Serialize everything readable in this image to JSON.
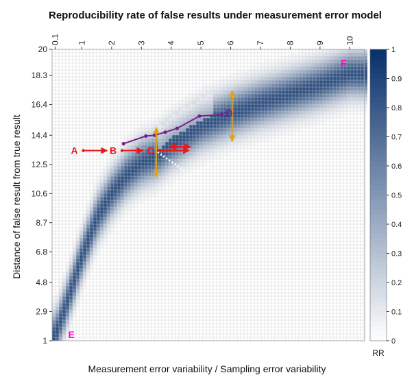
{
  "chart_data": {
    "type": "heatmap",
    "title": "Reproducibility rate of false results under measurement error model",
    "xlabel": "Measurement error variability /  Sampling error variability",
    "ylabel": "Distance of false result from true result",
    "x_ticks": [
      "0.1",
      "1",
      "2",
      "3",
      "4",
      "5",
      "6",
      "7",
      "8",
      "9",
      "10"
    ],
    "x_tick_values": [
      0.1,
      1,
      2,
      3,
      4,
      5,
      6,
      7,
      8,
      9,
      10
    ],
    "y_ticks": [
      "1",
      "2.9",
      "4.8",
      "6.8",
      "8.7",
      "10.6",
      "12.5",
      "14.4",
      "16.4",
      "18.3",
      "20"
    ],
    "y_tick_values": [
      1,
      2.9,
      4.8,
      6.8,
      8.7,
      10.6,
      12.5,
      14.4,
      16.4,
      18.3,
      20
    ],
    "xlim": [
      0,
      10.5
    ],
    "ylim": [
      1,
      20
    ],
    "colorbar": {
      "label": "RR",
      "ticks": [
        "0",
        "0.1",
        "0.2",
        "0.3",
        "0.4",
        "0.5",
        "0.6",
        "0.7",
        "0.8",
        "0.9",
        "1"
      ],
      "range": [
        0,
        1
      ],
      "color_low": "#ffffff",
      "color_high": "#08306b"
    },
    "band_ridge": {
      "description": "approximate ridge (max RR) of the high-reproducibility band",
      "x": [
        0.1,
        0.5,
        1,
        1.5,
        2,
        2.5,
        3,
        3.5,
        4,
        5,
        6,
        7,
        8,
        9,
        10
      ],
      "y": [
        1.3,
        3.5,
        6.5,
        9.0,
        10.6,
        11.8,
        12.6,
        13.0,
        13.8,
        15.0,
        15.8,
        16.5,
        17.1,
        17.7,
        18.4
      ],
      "peak_rr": 0.85,
      "band_width_y": 1.35
    },
    "labels": [
      {
        "text": "A",
        "x": 0.75,
        "y": 13.4,
        "color": "#e8191c"
      },
      {
        "text": "B",
        "x": 2.05,
        "y": 13.4,
        "color": "#e8191c"
      },
      {
        "text": "C",
        "x": 3.3,
        "y": 13.4,
        "color": "#e8191c"
      },
      {
        "text": "D",
        "x": 5.95,
        "y": 15.85,
        "color": "#7b1c8c"
      },
      {
        "text": "E",
        "x": 0.65,
        "y": 1.4,
        "color": "#ff00cc"
      },
      {
        "text": "F",
        "x": 9.8,
        "y": 19.1,
        "color": "#ff00cc"
      }
    ],
    "red_arrows": [
      {
        "from": [
          1.05,
          13.4
        ],
        "to": [
          1.85,
          13.4
        ]
      },
      {
        "from": [
          2.35,
          13.4
        ],
        "to": [
          3.05,
          13.4
        ]
      },
      {
        "from": [
          3.55,
          13.4
        ],
        "to": [
          4.6,
          13.4
        ]
      }
    ],
    "red_double_arrow": {
      "from": [
        3.95,
        13.65
      ],
      "to": [
        4.65,
        13.65
      ]
    },
    "purple_path": {
      "x": [
        2.4,
        3.15,
        3.45,
        3.8,
        4.2,
        4.95,
        5.7
      ],
      "y": [
        13.85,
        14.35,
        14.4,
        14.6,
        14.85,
        15.65,
        15.75
      ]
    },
    "orange_double_arrows": [
      {
        "x": 3.5,
        "y_from": 11.7,
        "y_to": 14.9
      },
      {
        "x": 6.05,
        "y_from": 14.0,
        "y_to": 17.3
      }
    ],
    "white_dotted_line": {
      "x": [
        3.55,
        4.5
      ],
      "y": [
        13.3,
        12.0
      ]
    }
  },
  "colors": {
    "red": "#e8191c",
    "purple": "#7b1c8c",
    "orange": "#daa520",
    "magenta": "#ff00cc"
  }
}
